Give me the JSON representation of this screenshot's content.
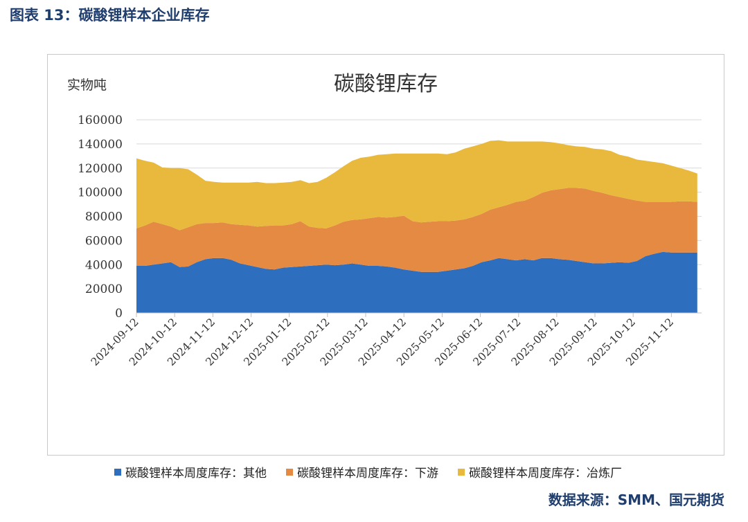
{
  "figure": {
    "caption": "图表 13：碳酸锂样本企业库存",
    "source": "数据来源：SMM、国元期货"
  },
  "colors": {
    "other": "#2e6ebf",
    "downstream": "#e48a42",
    "smelter": "#e9b93d",
    "grid": "#d9d9d9"
  },
  "chart_data": {
    "type": "area",
    "stacked": true,
    "title": "碳酸锂库存",
    "ylabel": "实物吨",
    "ylim": [
      0,
      160000
    ],
    "yticks": [
      0,
      20000,
      40000,
      60000,
      80000,
      100000,
      120000,
      140000,
      160000
    ],
    "ytick_labels": [
      "0",
      "20000",
      "40000",
      "60000",
      "80000",
      "100000",
      "120000",
      "140000",
      "160000"
    ],
    "x_range": [
      0,
      65.5
    ],
    "xtick_positions": [
      0,
      4.43,
      8.86,
      13.29,
      17.71,
      22.14,
      26.57,
      31,
      35.43,
      39.86,
      44.29,
      48.71,
      53.14,
      57.57,
      62
    ],
    "xtick_labels": [
      "2024-09-12",
      "2024-10-12",
      "2024-11-12",
      "2024-12-12",
      "2025-01-12",
      "2025-02-12",
      "2025-03-12",
      "2025-04-12",
      "2025-05-12",
      "2025-06-12",
      "2025-07-12",
      "2025-08-12",
      "2025-09-12",
      "2025-10-12",
      "2025-11-12"
    ],
    "x": [
      0,
      1,
      2,
      3,
      4,
      5,
      6,
      7,
      8,
      9,
      10,
      11,
      12,
      13,
      14,
      15,
      16,
      17,
      18,
      19,
      20,
      21,
      22,
      23,
      24,
      25,
      26,
      27,
      28,
      29,
      30,
      31,
      32,
      33,
      34,
      35,
      36,
      37,
      38,
      39,
      40,
      41,
      42,
      43,
      44,
      45,
      46,
      47,
      48,
      49,
      50,
      51,
      52,
      53,
      54,
      55,
      56,
      57,
      58,
      59,
      60,
      61,
      62,
      63,
      64,
      65
    ],
    "series": [
      {
        "name": "碳酸锂样本周度库存：其他",
        "color_key": "other",
        "values": [
          39000,
          39000,
          40000,
          41000,
          42000,
          38000,
          38500,
          42000,
          44500,
          45500,
          45500,
          44000,
          41000,
          39500,
          38000,
          36500,
          36000,
          37500,
          38000,
          38500,
          39000,
          39500,
          40000,
          39500,
          40000,
          41000,
          40000,
          39000,
          39000,
          38500,
          37500,
          36000,
          35000,
          34000,
          34000,
          34000,
          35000,
          36000,
          37000,
          39000,
          42000,
          43500,
          45500,
          44500,
          43500,
          44500,
          43500,
          45500,
          45500,
          44500,
          44000,
          43000,
          42000,
          41000,
          41000,
          41500,
          42000,
          41500,
          43000,
          47000,
          49000,
          50500,
          50000,
          50000,
          50000,
          50000
        ]
      },
      {
        "name": "碳酸锂样本周度库存：下游",
        "color_key": "downstream",
        "values": [
          31000,
          33500,
          35500,
          32500,
          29500,
          30500,
          32500,
          31500,
          30000,
          29000,
          29500,
          29500,
          32000,
          33000,
          33500,
          35500,
          36500,
          35000,
          35500,
          37500,
          32500,
          31000,
          30000,
          33000,
          35500,
          36000,
          37500,
          39500,
          40500,
          40500,
          42000,
          44500,
          41000,
          41000,
          41500,
          42000,
          41000,
          40500,
          40500,
          40500,
          40000,
          42000,
          42000,
          45000,
          48500,
          48500,
          52500,
          54000,
          56000,
          58000,
          59500,
          60500,
          61000,
          60000,
          58500,
          56000,
          54000,
          53000,
          50000,
          45000,
          43000,
          41500,
          42000,
          42500,
          42500,
          42000
        ]
      },
      {
        "name": "碳酸锂样本周度库存：冶炼厂",
        "color_key": "smelter",
        "values": [
          58000,
          53500,
          49000,
          47000,
          48500,
          51500,
          48000,
          41000,
          35000,
          34000,
          33000,
          34500,
          35000,
          35500,
          37000,
          35500,
          35000,
          35500,
          35000,
          34000,
          36000,
          38000,
          42000,
          44000,
          46000,
          49000,
          51000,
          51000,
          51500,
          52500,
          52500,
          51500,
          56000,
          57000,
          56500,
          56000,
          55500,
          56500,
          58500,
          58500,
          58000,
          57000,
          55500,
          52500,
          50000,
          49000,
          46000,
          42500,
          40000,
          38000,
          35500,
          34500,
          34500,
          35000,
          36000,
          36500,
          35000,
          35000,
          34000,
          34000,
          33000,
          32000,
          30000,
          27500,
          25500,
          23500
        ]
      }
    ]
  },
  "chart_labels_text": {
    "note": "legend and axis labels drawn from chart_data"
  }
}
